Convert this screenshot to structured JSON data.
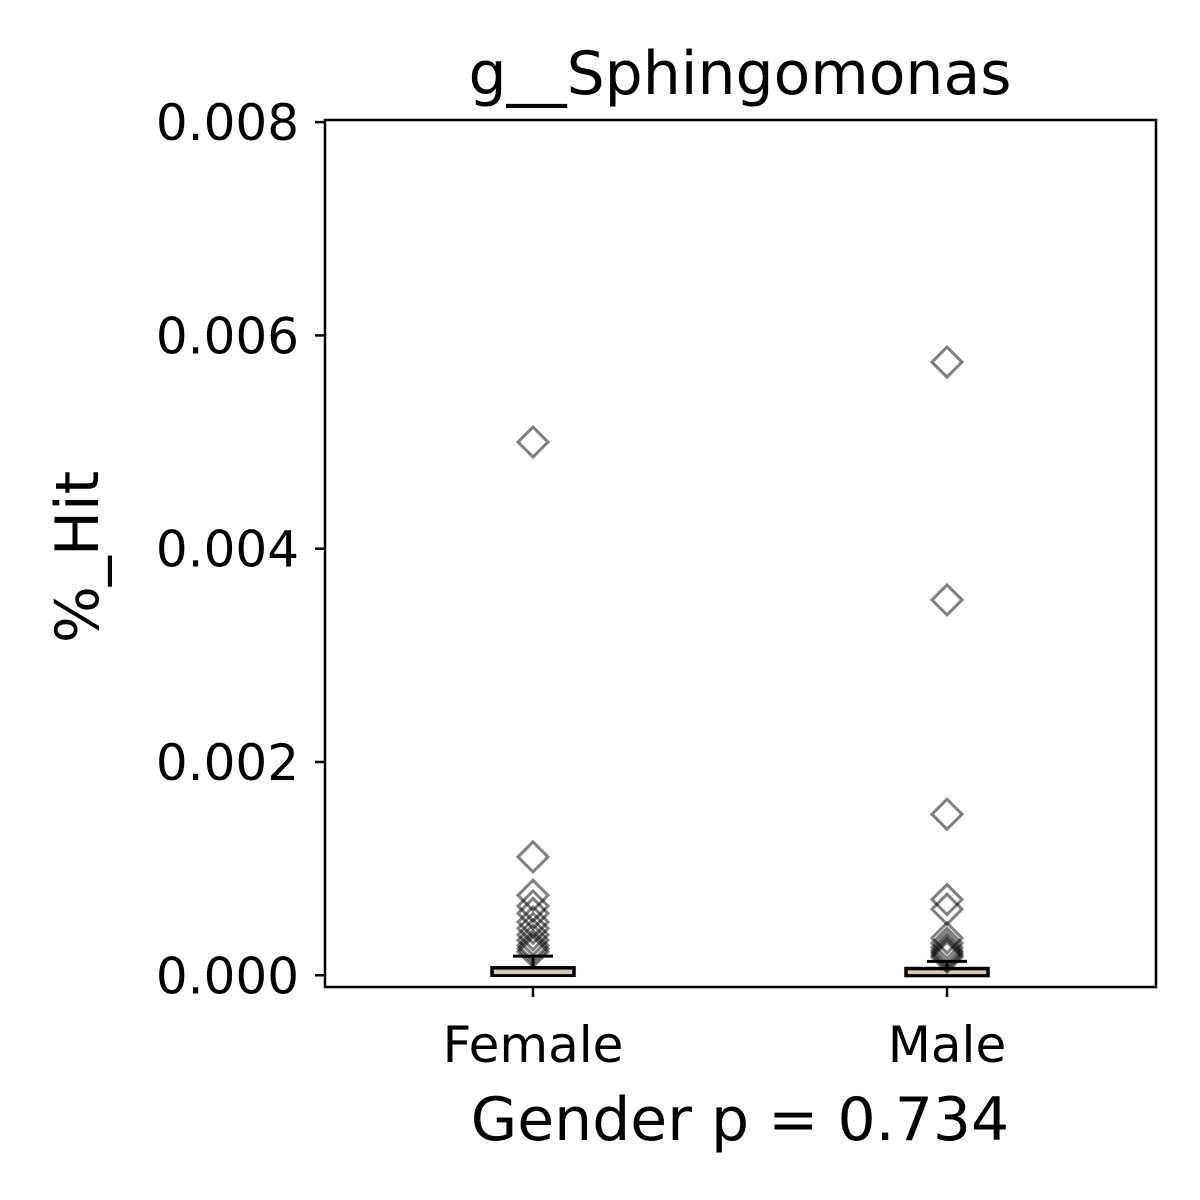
{
  "chart_data": {
    "type": "box",
    "title": "g__Sphingomonas",
    "xlabel": "Gender p = 0.734",
    "ylabel": "%_Hit",
    "ylim": [
      -0.00011,
      0.00802
    ],
    "yticks": [
      0.0,
      0.002,
      0.004,
      0.006,
      0.008
    ],
    "ytick_labels": [
      "0.000",
      "0.002",
      "0.004",
      "0.006",
      "0.008"
    ],
    "categories": [
      "Female",
      "Male"
    ],
    "grid": false,
    "series": [
      {
        "category": "Female",
        "q1": 0.0,
        "median": 2e-05,
        "q3": 7e-05,
        "whisker_low": 0.0,
        "whisker_high": 0.00018,
        "outliers": [
          0.005,
          0.00111,
          0.00075,
          0.00065,
          0.00058,
          0.0005,
          0.00044,
          0.00038,
          0.00033,
          0.00028,
          0.00025,
          0.00022
        ]
      },
      {
        "category": "Male",
        "q1": 0.0,
        "median": 2e-05,
        "q3": 6e-05,
        "whisker_low": 0.0,
        "whisker_high": 0.00013,
        "outliers": [
          0.00575,
          0.00352,
          0.00151,
          0.00071,
          0.00062,
          0.00035,
          0.0003,
          0.00026,
          0.00023,
          0.00021,
          0.00019,
          0.00017
        ]
      }
    ]
  }
}
